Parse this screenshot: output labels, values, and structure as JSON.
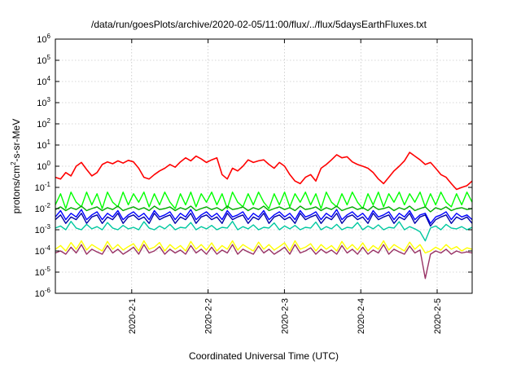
{
  "chart_data": {
    "type": "line",
    "title": "/data/run/goesPlots/archive/2020-02-05/11:00/flux/../flux/5daysEarthFluxes.txt",
    "xlabel": "Coordinated Universal Time (UTC)",
    "ylabel": "protons/cm²-s-sr-MeV",
    "ylabel_parts": {
      "pre": "protons/cm",
      "sup": "2",
      "post": "-s-sr-MeV"
    },
    "y_scale": "log",
    "ylim": [
      1e-06,
      1000000.0
    ],
    "y_ticks": [
      {
        "base": "10",
        "exp": "-6"
      },
      {
        "base": "10",
        "exp": "-5"
      },
      {
        "base": "10",
        "exp": "-4"
      },
      {
        "base": "10",
        "exp": "-3"
      },
      {
        "base": "10",
        "exp": "-2"
      },
      {
        "base": "10",
        "exp": "-1"
      },
      {
        "base": "10",
        "exp": "0"
      },
      {
        "base": "10",
        "exp": "1"
      },
      {
        "base": "10",
        "exp": "2"
      },
      {
        "base": "10",
        "exp": "3"
      },
      {
        "base": "10",
        "exp": "4"
      },
      {
        "base": "10",
        "exp": "5"
      },
      {
        "base": "10",
        "exp": "6"
      }
    ],
    "xlim": [
      "2020-01-31T00:00",
      "2020-02-05T11:00"
    ],
    "x_ticks": [
      "2020-2-1",
      "2020-2-2",
      "2020-2-3",
      "2020-2-4",
      "2020-2-5"
    ],
    "grid": true,
    "series": [
      {
        "color": "#ff0000",
        "values": [
          0.3,
          0.25,
          0.5,
          0.35,
          1.0,
          1.5,
          0.7,
          0.35,
          0.5,
          1.2,
          1.6,
          1.3,
          1.8,
          1.4,
          1.9,
          1.6,
          0.8,
          0.3,
          0.25,
          0.4,
          0.6,
          0.8,
          1.2,
          0.9,
          1.6,
          2.5,
          1.8,
          3.0,
          2.2,
          1.5,
          2.0,
          2.5,
          0.4,
          0.25,
          0.8,
          0.6,
          1.0,
          2.0,
          1.5,
          1.8,
          2.0,
          1.2,
          0.8,
          1.5,
          1.0,
          0.4,
          0.2,
          0.15,
          0.3,
          0.4,
          0.2,
          0.8,
          1.2,
          2.0,
          3.5,
          2.5,
          2.8,
          1.6,
          1.2,
          1.0,
          0.8,
          0.5,
          0.25,
          0.15,
          0.3,
          0.6,
          1.0,
          1.8,
          4.5,
          3.0,
          2.0,
          1.2,
          1.5,
          0.8,
          0.4,
          0.3,
          0.15,
          0.08,
          0.1,
          0.12,
          0.2
        ]
      },
      {
        "color": "#00ff00",
        "values": [
          0.015,
          0.05,
          0.01,
          0.06,
          0.02,
          0.012,
          0.06,
          0.015,
          0.05,
          0.01,
          0.06,
          0.02,
          0.012,
          0.06,
          0.015,
          0.05,
          0.02,
          0.06,
          0.012,
          0.05,
          0.015,
          0.06,
          0.02,
          0.01,
          0.05,
          0.015,
          0.06,
          0.012,
          0.05,
          0.02,
          0.06,
          0.015,
          0.05,
          0.01,
          0.06,
          0.02,
          0.012,
          0.05,
          0.015,
          0.06,
          0.02,
          0.01,
          0.05,
          0.015,
          0.06,
          0.012,
          0.05,
          0.02,
          0.06,
          0.015,
          0.05,
          0.01,
          0.06,
          0.02,
          0.012,
          0.05,
          0.015,
          0.06,
          0.02,
          0.01,
          0.05,
          0.015,
          0.06,
          0.012,
          0.05,
          0.02,
          0.06,
          0.015,
          0.05,
          0.02,
          0.06,
          0.012,
          0.05,
          0.015,
          0.06,
          0.02,
          0.012,
          0.05,
          0.015,
          0.06,
          0.02
        ]
      },
      {
        "color": "#0000ff",
        "values": [
          0.004,
          0.008,
          0.003,
          0.006,
          0.004,
          0.009,
          0.003,
          0.005,
          0.007,
          0.003,
          0.006,
          0.004,
          0.008,
          0.003,
          0.005,
          0.007,
          0.004,
          0.006,
          0.003,
          0.008,
          0.004,
          0.005,
          0.007,
          0.003,
          0.006,
          0.004,
          0.009,
          0.003,
          0.005,
          0.007,
          0.004,
          0.006,
          0.003,
          0.008,
          0.004,
          0.005,
          0.007,
          0.003,
          0.006,
          0.004,
          0.008,
          0.003,
          0.005,
          0.007,
          0.004,
          0.006,
          0.003,
          0.008,
          0.004,
          0.005,
          0.007,
          0.003,
          0.006,
          0.004,
          0.009,
          0.003,
          0.005,
          0.007,
          0.004,
          0.006,
          0.003,
          0.008,
          0.004,
          0.005,
          0.007,
          0.003,
          0.006,
          0.004,
          0.008,
          0.003,
          0.005,
          0.006,
          0.002,
          0.004,
          0.005,
          0.007,
          0.003,
          0.006,
          0.004,
          0.005,
          0.003
        ]
      },
      {
        "color": "#0000aa",
        "values": [
          0.003,
          0.005,
          0.002,
          0.004,
          0.003,
          0.006,
          0.002,
          0.004,
          0.005,
          0.002,
          0.004,
          0.003,
          0.006,
          0.002,
          0.004,
          0.005,
          0.003,
          0.004,
          0.002,
          0.006,
          0.003,
          0.004,
          0.005,
          0.002,
          0.004,
          0.003,
          0.006,
          0.002,
          0.004,
          0.005,
          0.003,
          0.004,
          0.002,
          0.006,
          0.003,
          0.004,
          0.005,
          0.002,
          0.004,
          0.003,
          0.006,
          0.002,
          0.004,
          0.005,
          0.003,
          0.004,
          0.002,
          0.006,
          0.003,
          0.004,
          0.005,
          0.002,
          0.004,
          0.003,
          0.006,
          0.002,
          0.004,
          0.005,
          0.003,
          0.004,
          0.002,
          0.006,
          0.003,
          0.004,
          0.005,
          0.002,
          0.004,
          0.003,
          0.006,
          0.002,
          0.004,
          0.005,
          0.0015,
          0.003,
          0.004,
          0.005,
          0.002,
          0.004,
          0.003,
          0.004,
          0.002
        ]
      },
      {
        "color": "#00c8a0",
        "values": [
          0.0012,
          0.0015,
          0.001,
          0.0025,
          0.0012,
          0.001,
          0.0018,
          0.0011,
          0.0014,
          0.001,
          0.0022,
          0.0012,
          0.001,
          0.0016,
          0.0011,
          0.0013,
          0.001,
          0.0024,
          0.0012,
          0.001,
          0.0015,
          0.0011,
          0.0018,
          0.001,
          0.0013,
          0.0012,
          0.0022,
          0.001,
          0.0014,
          0.0011,
          0.0016,
          0.001,
          0.0013,
          0.0012,
          0.0025,
          0.001,
          0.0014,
          0.0011,
          0.0017,
          0.001,
          0.0013,
          0.0012,
          0.0021,
          0.001,
          0.0015,
          0.0011,
          0.0016,
          0.001,
          0.0013,
          0.0012,
          0.0023,
          0.001,
          0.0014,
          0.0011,
          0.0018,
          0.001,
          0.0013,
          0.0012,
          0.0022,
          0.001,
          0.0015,
          0.0011,
          0.0017,
          0.001,
          0.0013,
          0.0012,
          0.0024,
          0.001,
          0.0014,
          0.0011,
          0.0008,
          0.0003,
          0.0012,
          0.0015,
          0.001,
          0.0018,
          0.0012,
          0.0011,
          0.0014,
          0.001,
          0.0013
        ]
      },
      {
        "color": "#00aa00",
        "values": [
          0.009,
          0.012,
          0.008,
          0.011,
          0.009,
          0.013,
          0.008,
          0.01,
          0.012,
          0.008,
          0.011,
          0.009,
          0.013,
          0.008,
          0.01,
          0.012,
          0.009,
          0.011,
          0.008,
          0.013,
          0.009,
          0.01,
          0.012,
          0.008,
          0.011,
          0.009,
          0.013,
          0.008,
          0.01,
          0.012,
          0.009,
          0.011,
          0.008,
          0.013,
          0.009,
          0.01,
          0.012,
          0.008,
          0.011,
          0.009,
          0.013,
          0.008,
          0.01,
          0.012,
          0.009,
          0.011,
          0.008,
          0.013,
          0.009,
          0.01,
          0.012,
          0.008,
          0.011,
          0.009,
          0.013,
          0.008,
          0.01,
          0.012,
          0.009,
          0.011,
          0.008,
          0.013,
          0.009,
          0.01,
          0.012,
          0.008,
          0.011,
          0.009,
          0.013,
          0.008,
          0.01,
          0.012,
          0.007,
          0.011,
          0.009,
          0.012,
          0.008,
          0.01,
          0.011,
          0.009,
          0.01
        ]
      },
      {
        "color": "#ffff00",
        "values": [
          0.00012,
          0.00018,
          0.0001,
          0.00025,
          0.00012,
          0.0003,
          0.00011,
          0.0002,
          0.00014,
          0.0001,
          0.00028,
          0.00012,
          0.0002,
          0.00011,
          0.00016,
          0.00022,
          0.0001,
          0.0003,
          0.00012,
          0.00015,
          0.00025,
          0.0001,
          0.0002,
          0.00012,
          0.00018,
          0.0001,
          0.00028,
          0.00012,
          0.0002,
          0.00011,
          0.00024,
          0.0001,
          0.00018,
          0.00012,
          0.0003,
          0.00011,
          0.0002,
          0.00014,
          0.0001,
          0.00026,
          0.00012,
          0.0002,
          0.00011,
          0.00016,
          0.00024,
          0.0001,
          0.0003,
          0.00012,
          0.00015,
          0.00022,
          0.0001,
          0.0002,
          0.00012,
          0.00018,
          0.0001,
          0.00028,
          0.00012,
          0.0002,
          0.00011,
          0.00024,
          0.0001,
          0.00018,
          0.00012,
          0.0003,
          0.00011,
          0.0002,
          0.00014,
          0.0001,
          0.00026,
          0.00012,
          0.0002,
          8e-05,
          0.0001,
          0.00015,
          0.00011,
          0.0002,
          0.00012,
          0.00016,
          0.0001,
          0.00014,
          0.00012
        ]
      },
      {
        "color": "#993366",
        "values": [
          8e-05,
          0.0001,
          7e-05,
          0.00015,
          8e-05,
          0.0002,
          7e-05,
          0.00012,
          9e-05,
          7e-05,
          0.00018,
          8e-05,
          0.00012,
          7e-05,
          0.0001,
          0.00015,
          7e-05,
          0.0002,
          8e-05,
          0.0001,
          0.00016,
          7e-05,
          0.00012,
          8e-05,
          0.00011,
          7e-05,
          0.00018,
          8e-05,
          0.00012,
          7e-05,
          0.00015,
          7e-05,
          0.00011,
          8e-05,
          0.0002,
          7e-05,
          0.00012,
          9e-05,
          7e-05,
          0.00017,
          8e-05,
          0.00012,
          7e-05,
          0.0001,
          0.00015,
          7e-05,
          0.0002,
          8e-05,
          0.0001,
          0.00014,
          7e-05,
          0.00012,
          8e-05,
          0.00011,
          7e-05,
          0.00018,
          8e-05,
          0.00012,
          7e-05,
          0.00015,
          7e-05,
          0.00011,
          8e-05,
          0.0002,
          7e-05,
          0.00012,
          9e-05,
          7e-05,
          0.00017,
          8e-05,
          0.00011,
          5e-06,
          7e-05,
          0.0001,
          8e-05,
          0.00012,
          7e-05,
          0.0001,
          8e-05,
          9e-05,
          8e-05
        ]
      }
    ]
  }
}
